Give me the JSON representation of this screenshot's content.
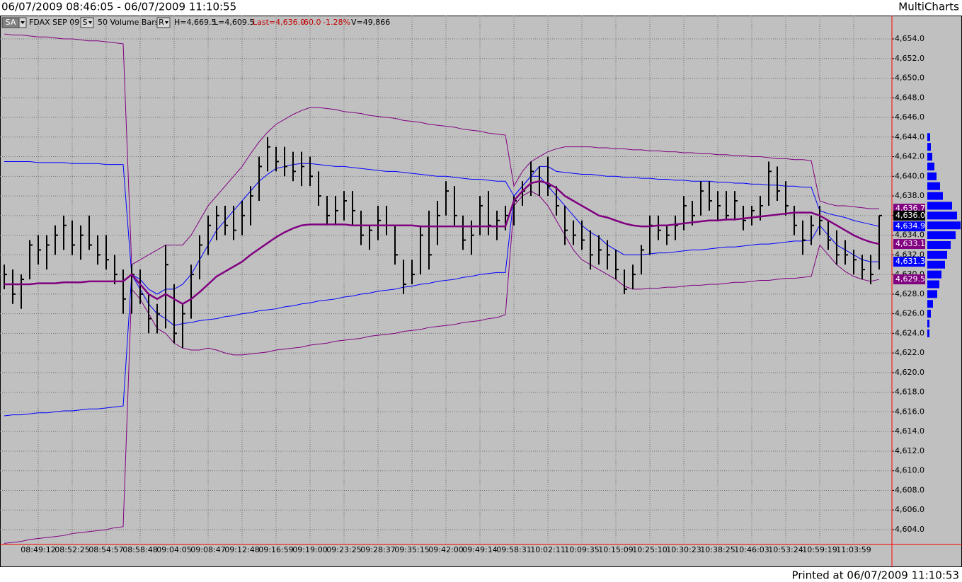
{
  "header": {
    "title": "06/07/2009 08:46:05 - 06/07/2009 11:10:55",
    "app": "MultiCharts"
  },
  "footer": "Printed at 06/07/2009 11:10:53",
  "chart_data": {
    "type": "ohlc",
    "status_bar": {
      "buttons": [
        "SA",
        "S",
        "R"
      ],
      "symbol": "FDAX SEP 09",
      "interval": "50 Volume Bars",
      "high": "H=4,669.5",
      "low": "L=4,609.5",
      "last": "Last=4,636.0",
      "change": "-60.0",
      "change_pct": "-1.28%",
      "volume": "V=49,866"
    },
    "x": [
      null,
      null,
      null,
      null,
      "08:49:12",
      null,
      null,
      null,
      "08:52:25",
      null,
      null,
      null,
      "08:54:57",
      null,
      null,
      null,
      "08:58:48",
      null,
      null,
      null,
      "09:04:05",
      null,
      null,
      null,
      "09:08:47",
      null,
      null,
      null,
      "09:12:48",
      null,
      null,
      null,
      "09:16:59",
      null,
      null,
      null,
      "09:19:00",
      null,
      null,
      null,
      "09:23:25",
      null,
      null,
      null,
      "09:28:37",
      null,
      null,
      null,
      "09:35:15",
      null,
      null,
      null,
      "09:42:00",
      null,
      null,
      null,
      "09:49:14",
      null,
      null,
      null,
      "09:58:31",
      null,
      null,
      null,
      "10:02:11",
      null,
      null,
      null,
      "10:09:35",
      null,
      null,
      null,
      "10:15:09",
      null,
      null,
      null,
      "10:25:10",
      null,
      null,
      null,
      "10:30:23",
      null,
      null,
      null,
      "10:38:25",
      null,
      null,
      null,
      "10:46:03",
      null,
      null,
      null,
      "10:53:24",
      null,
      null,
      null,
      "10:59:19",
      null,
      null,
      null,
      "11:03:59",
      null,
      null,
      null
    ],
    "bars": {
      "color": "#000000",
      "high": [
        4631,
        4630.5,
        4630,
        4633.5,
        4634,
        4634,
        4635,
        4636,
        4635.5,
        4635,
        4636,
        4634,
        4634,
        4632,
        4630.5,
        4631,
        4630.5,
        4628,
        4627,
        4633,
        4629,
        4627,
        4631,
        4634,
        4636,
        4637,
        4637,
        4637,
        4637.5,
        4639,
        4642,
        4644,
        4643,
        4643,
        4642.5,
        4642.5,
        4642,
        4640.5,
        4638,
        4638,
        4638.5,
        4638.5,
        4636.5,
        4635,
        4637,
        4637,
        4635,
        4631.5,
        4631.5,
        4635,
        4636.5,
        4637.5,
        4639.5,
        4639,
        4636,
        4635.5,
        4638,
        4638.5,
        4636.5,
        4637,
        4638,
        4639.5,
        4641.5,
        4641,
        4642,
        4639,
        4637,
        4635.5,
        4635.5,
        4634.5,
        4634,
        4633.5,
        4632.5,
        4630.5,
        4631,
        4633,
        4636,
        4636,
        4635,
        4636,
        4638,
        4637.5,
        4639.5,
        4639.5,
        4638.5,
        4638.5,
        4638.5,
        4637,
        4637,
        4638,
        4641.5,
        4641,
        4639.5,
        4637,
        4635.5,
        4636,
        4637,
        4635.5,
        4634.5,
        4633.5,
        4632.5,
        4632,
        4632,
        4636
      ],
      "low": [
        4628.5,
        4627,
        4626.5,
        4629.5,
        4631,
        4630.5,
        4632,
        4632.5,
        4632,
        4631.5,
        4632.5,
        4631,
        4630.5,
        4629,
        4626,
        4626,
        4627,
        4624,
        4624,
        4624.5,
        4623,
        4622.5,
        4625.5,
        4629.5,
        4632,
        4633.5,
        4634,
        4633.5,
        4634,
        4635,
        4637.5,
        4640.5,
        4640.5,
        4640,
        4639.5,
        4639,
        4639,
        4637,
        4635,
        4635,
        4635.5,
        4635,
        4633,
        4632.5,
        4633.5,
        4634,
        4631,
        4628,
        4629,
        4630,
        4630.5,
        4633,
        4636,
        4635,
        4632.5,
        4632,
        4634,
        4634,
        4633.5,
        4634.5,
        4635,
        4637,
        4638,
        4638,
        4638,
        4636,
        4633,
        4633,
        4632.5,
        4630.5,
        4631,
        4630.5,
        4629.5,
        4628,
        4628.5,
        4630,
        4632,
        4633.5,
        4633,
        4633.5,
        4634.5,
        4635,
        4636,
        4636.5,
        4635.5,
        4635.5,
        4635.5,
        4634.5,
        4635,
        4635.5,
        4637,
        4637.5,
        4636,
        4634,
        4632,
        4633,
        4634,
        4632.5,
        4631,
        4631,
        4630,
        4629.5,
        4629,
        4630.5
      ],
      "close": [
        4630,
        4628,
        4629.5,
        4633,
        4632.5,
        4633,
        4634,
        4635,
        4633,
        4634,
        4633,
        4632,
        4631.5,
        4630,
        4627.5,
        4630,
        4628,
        4625.5,
        4626,
        4631,
        4624,
        4626,
        4630,
        4633,
        4635,
        4636,
        4635,
        4634.5,
        4636,
        4638,
        4641,
        4643,
        4641.5,
        4641,
        4640.5,
        4641,
        4640,
        4638,
        4636,
        4636.5,
        4637.5,
        4636.5,
        4634,
        4634.5,
        4635.5,
        4635,
        4632,
        4629,
        4630,
        4634,
        4632,
        4636,
        4638.5,
        4636,
        4633.5,
        4634,
        4637,
        4635,
        4635.5,
        4636,
        4637.5,
        4638.5,
        4640.5,
        4639.5,
        4639,
        4637,
        4634.5,
        4634,
        4633.5,
        4632,
        4632.5,
        4632,
        4630.5,
        4628.5,
        4630,
        4632.5,
        4635,
        4634.5,
        4634,
        4635,
        4637,
        4636,
        4638.5,
        4637.5,
        4637,
        4636,
        4637.5,
        4635.5,
        4636.5,
        4637,
        4640.5,
        4638.5,
        4637,
        4635,
        4633.5,
        4635,
        4635.5,
        4633.5,
        4632,
        4632,
        4631.5,
        4630.5,
        4630,
        4636
      ]
    },
    "overlays": [
      {
        "color": "#0000ff",
        "values": [
          4641.5,
          4641.5,
          4641.5,
          4641.5,
          4641.4,
          4641.4,
          4641.4,
          4641.4,
          4641.3,
          4641.3,
          4641.3,
          4641.3,
          4641.2,
          4641.2,
          4641.2,
          4630,
          4629.5,
          4628.5,
          4628,
          4628.5,
          4628.5,
          4629,
          4630,
          4631.5,
          4633,
          4634.5,
          4635.5,
          4636.5,
          4637.5,
          4638.5,
          4639.5,
          4640.2,
          4640.8,
          4641,
          4641.2,
          4641.3,
          4641.3,
          4641.2,
          4641.1,
          4641,
          4641,
          4640.9,
          4640.8,
          4640.7,
          4640.6,
          4640.5,
          4640.5,
          4640.4,
          4640.3,
          4640.2,
          4640.1,
          4640,
          4640,
          4639.9,
          4639.8,
          4639.7,
          4639.7,
          4639.6,
          4639.5,
          4639.5,
          4638,
          4639,
          4640,
          4641,
          4641,
          4640.5,
          4640.4,
          4640.3,
          4640.2,
          4640.2,
          4640.1,
          4640,
          4640,
          4639.9,
          4639.9,
          4639.8,
          4639.8,
          4639.7,
          4639.7,
          4639.6,
          4639.6,
          4639.5,
          4639.5,
          4639.5,
          4639.4,
          4639.4,
          4639.3,
          4639.3,
          4639.2,
          4639.2,
          4639.1,
          4639.1,
          4639,
          4639,
          4638.9,
          4638.9,
          4636.5,
          4636.2,
          4636,
          4635.8,
          4635.5,
          4635.3,
          4635.1,
          4634.9
        ]
      },
      {
        "color": "#0000ff",
        "values": [
          4615.6,
          4615.7,
          4615.7,
          4615.8,
          4615.9,
          4615.9,
          4616,
          4616.1,
          4616.1,
          4616.2,
          4616.3,
          4616.3,
          4616.4,
          4616.5,
          4616.6,
          4630,
          4628.5,
          4627,
          4626,
          4625.5,
          4624.8,
          4625,
          4625.1,
          4625.3,
          4625.4,
          4625.5,
          4625.7,
          4625.8,
          4626,
          4626.1,
          4626.3,
          4626.4,
          4626.5,
          4626.7,
          4626.8,
          4627,
          4627.1,
          4627.3,
          4627.4,
          4627.5,
          4627.7,
          4627.8,
          4628,
          4628.1,
          4628.3,
          4628.4,
          4628.5,
          4628.7,
          4628.8,
          4629,
          4629.1,
          4629.3,
          4629.4,
          4629.5,
          4629.7,
          4629.8,
          4630,
          4630.1,
          4630.2,
          4630.2,
          4638,
          4639,
          4640,
          4640,
          4639,
          4638,
          4637,
          4636,
          4635,
          4634.3,
          4633.8,
          4633,
          4632.5,
          4632,
          4632,
          4632,
          4632.1,
          4632.2,
          4632.2,
          4632.3,
          4632.4,
          4632.5,
          4632.5,
          4632.6,
          4632.7,
          4632.8,
          4632.8,
          4632.9,
          4633,
          4633.1,
          4633.1,
          4633.2,
          4633.3,
          4633.4,
          4633.4,
          4633.5,
          4635,
          4634,
          4633,
          4632.5,
          4632,
          4631.5,
          4631.3,
          4631.3
        ]
      },
      {
        "color": "#800080",
        "values": [
          4654.5,
          4654.4,
          4654.4,
          4654.3,
          4654.2,
          4654.2,
          4654.1,
          4654,
          4654,
          4653.9,
          4653.8,
          4653.8,
          4653.7,
          4653.6,
          4653.5,
          4631,
          4631.5,
          4632,
          4632.5,
          4633,
          4633,
          4633,
          4634,
          4635.5,
          4637,
          4638,
          4639,
          4640,
          4641,
          4642.3,
          4643.5,
          4644.5,
          4645.3,
          4645.8,
          4646.3,
          4646.7,
          4647,
          4647,
          4646.9,
          4646.8,
          4646.6,
          4646.5,
          4646.4,
          4646.2,
          4646.1,
          4646,
          4645.9,
          4645.7,
          4645.6,
          4645.5,
          4645.3,
          4645.2,
          4645.1,
          4645,
          4644.8,
          4644.7,
          4644.6,
          4644.4,
          4644.3,
          4644.2,
          4639,
          4640.5,
          4641.5,
          4642,
          4642.5,
          4642.8,
          4643,
          4643,
          4643,
          4643,
          4642.9,
          4642.9,
          4642.8,
          4642.8,
          4642.7,
          4642.7,
          4642.6,
          4642.6,
          4642.5,
          4642.5,
          4642.4,
          4642.4,
          4642.3,
          4642.3,
          4642.2,
          4642.2,
          4642.1,
          4642.1,
          4642,
          4642,
          4641.9,
          4641.8,
          4641.8,
          4641.7,
          4641.7,
          4641.6,
          4637.5,
          4637.2,
          4637,
          4637,
          4636.9,
          4636.8,
          4636.7,
          4636.7
        ]
      },
      {
        "color": "#800080",
        "values": [
          4602.6,
          4602.7,
          4602.8,
          4603,
          4603.1,
          4603.2,
          4603.3,
          4603.4,
          4603.6,
          4603.7,
          4603.8,
          4603.9,
          4604,
          4604.2,
          4604.3,
          4628.5,
          4627.5,
          4626,
          4624.5,
          4624,
          4623,
          4622.5,
          4622.3,
          4622.3,
          4622.5,
          4622.3,
          4622,
          4621.8,
          4621.8,
          4621.9,
          4622,
          4622.1,
          4622.3,
          4622.4,
          4622.5,
          4622.6,
          4622.8,
          4622.9,
          4623,
          4623.2,
          4623.3,
          4623.4,
          4623.5,
          4623.7,
          4623.8,
          4623.9,
          4624,
          4624.2,
          4624.3,
          4624.4,
          4624.6,
          4624.7,
          4624.8,
          4624.9,
          4625.1,
          4625.2,
          4625.3,
          4625.5,
          4625.6,
          4625.9,
          4637,
          4638,
          4638.5,
          4638,
          4637,
          4635.5,
          4634,
          4632.5,
          4631.5,
          4631,
          4630.5,
          4630,
          4629.5,
          4628.8,
          4628.5,
          4628.5,
          4628.6,
          4628.6,
          4628.7,
          4628.7,
          4628.8,
          4628.9,
          4628.9,
          4629,
          4629,
          4629.1,
          4629.2,
          4629.2,
          4629.3,
          4629.4,
          4629.4,
          4629.5,
          4629.6,
          4629.6,
          4629.7,
          4629.8,
          4633,
          4632,
          4631,
          4630.3,
          4629.8,
          4629.5,
          4629.3,
          4629.5
        ]
      },
      {
        "color": "#800080",
        "bold": true,
        "values": [
          4629,
          4629,
          4629,
          4629,
          4629.1,
          4629.1,
          4629.1,
          4629.2,
          4629.2,
          4629.2,
          4629.3,
          4629.3,
          4629.3,
          4629.3,
          4629.3,
          4630,
          4629,
          4628,
          4627.5,
          4628,
          4627.5,
          4627,
          4627.5,
          4628.2,
          4629,
          4629.8,
          4630.3,
          4630.8,
          4631.3,
          4632,
          4632.6,
          4633.2,
          4633.8,
          4634.3,
          4634.7,
          4635,
          4635.1,
          4635.1,
          4635.1,
          4635.1,
          4635.1,
          4635,
          4635,
          4635,
          4635,
          4635,
          4635,
          4635,
          4635,
          4634.9,
          4634.9,
          4634.9,
          4634.9,
          4634.9,
          4634.9,
          4634.9,
          4634.9,
          4634.9,
          4634.9,
          4634.9,
          4637.5,
          4638.5,
          4639.3,
          4639.5,
          4639.3,
          4638.8,
          4638,
          4637.5,
          4637,
          4636.5,
          4636,
          4635.8,
          4635.5,
          4635.2,
          4635,
          4634.9,
          4634.9,
          4635,
          4635,
          4635.1,
          4635.2,
          4635.3,
          4635.4,
          4635.5,
          4635.5,
          4635.6,
          4635.6,
          4635.7,
          4635.8,
          4635.9,
          4636,
          4636.1,
          4636.2,
          4636.3,
          4636.3,
          4636.3,
          4636,
          4635.5,
          4635,
          4634.5,
          4634,
          4633.6,
          4633.3,
          4633.1
        ]
      }
    ],
    "price_markers": [
      {
        "value": 4636.7,
        "label": "4,636.7",
        "color": "#800080"
      },
      {
        "value": 4636.0,
        "label": "4,636.0",
        "color": "#000000"
      },
      {
        "value": 4634.9,
        "label": "4,634.9",
        "color": "#0000ff"
      },
      {
        "value": 4633.1,
        "label": "4,633.1",
        "color": "#800080"
      },
      {
        "value": 4631.3,
        "label": "4,631.3",
        "color": "#0000ff"
      },
      {
        "value": 4629.5,
        "label": "4,629.5",
        "color": "#800080"
      }
    ],
    "volume_profile": {
      "color": "#0000ff",
      "prices": [
        4624,
        4625,
        4626,
        4627,
        4628,
        4629,
        4630,
        4631,
        4632,
        4633,
        4634,
        4635,
        4636,
        4637,
        4638,
        4639,
        4640,
        4641,
        4642,
        4643,
        4644
      ],
      "volumes": [
        3,
        3,
        5,
        8,
        14,
        17,
        20,
        25,
        28,
        33,
        40,
        47,
        42,
        35,
        22,
        18,
        13,
        10,
        7,
        5,
        4
      ]
    },
    "ylim": [
      4602.5,
      4656
    ],
    "yticks": [
      {
        "value": 4604,
        "label": "4,604.0"
      },
      {
        "value": 4606,
        "label": "4,606.0"
      },
      {
        "value": 4608,
        "label": "4,608.0"
      },
      {
        "value": 4610,
        "label": "4,610.0"
      },
      {
        "value": 4612,
        "label": "4,612.0"
      },
      {
        "value": 4614,
        "label": "4,614.0"
      },
      {
        "value": 4616,
        "label": "4,616.0"
      },
      {
        "value": 4618,
        "label": "4,618.0"
      },
      {
        "value": 4620,
        "label": "4,620.0"
      },
      {
        "value": 4622,
        "label": "4,622.0"
      },
      {
        "value": 4624,
        "label": "4,624.0"
      },
      {
        "value": 4626,
        "label": "4,626.0"
      },
      {
        "value": 4628,
        "label": "4,628.0"
      },
      {
        "value": 4630,
        "label": "4,630.0"
      },
      {
        "value": 4632,
        "label": "4,632.0"
      },
      {
        "value": 4634,
        "label": "4,634.0"
      },
      {
        "value": 4636,
        "label": "4,636.0"
      },
      {
        "value": 4638,
        "label": "4,638.0"
      },
      {
        "value": 4640,
        "label": "4,640.0"
      },
      {
        "value": 4642,
        "label": "4,642.0"
      },
      {
        "value": 4644,
        "label": "4,644.0"
      },
      {
        "value": 4646,
        "label": "4,646.0"
      },
      {
        "value": 4648,
        "label": "4,648.0"
      },
      {
        "value": 4650,
        "label": "4,650.0"
      },
      {
        "value": 4652,
        "label": "4,652.0"
      },
      {
        "value": 4654,
        "label": "4,654.0"
      }
    ],
    "grid": true
  }
}
